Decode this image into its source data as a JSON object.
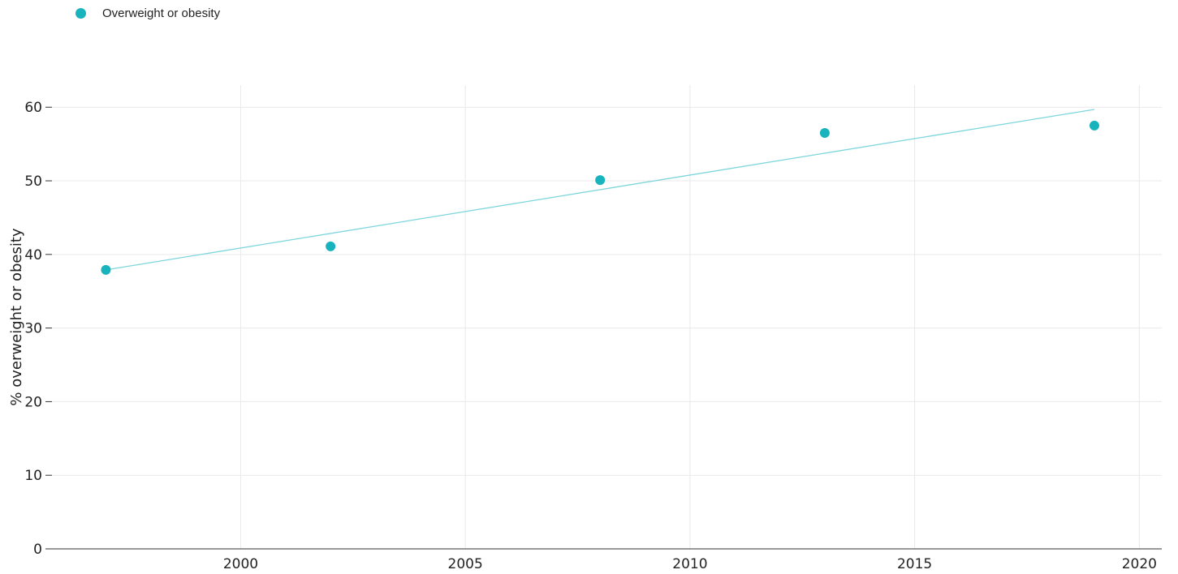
{
  "legend": {
    "label": "Overweight or obesity"
  },
  "colors": {
    "marker": "#19b3bd",
    "trendline": "#7dd6dc",
    "grid": "#e9e9e9",
    "axis": "#333333",
    "text": "#222222"
  },
  "chart_data": {
    "type": "scatter",
    "title": "",
    "xlabel": "",
    "ylabel": "% overweight or obesity",
    "xlim": [
      1995.8,
      2020.5
    ],
    "ylim": [
      0,
      63
    ],
    "xticks": [
      2000,
      2005,
      2010,
      2015,
      2020
    ],
    "yticks": [
      0,
      10,
      20,
      30,
      40,
      50,
      60
    ],
    "grid": true,
    "legend_position": "top-left",
    "series": [
      {
        "name": "Overweight or obesity",
        "x": [
          1997,
          2002,
          2008,
          2013,
          2019
        ],
        "y": [
          37.9,
          41.1,
          50.1,
          56.5,
          57.5
        ]
      }
    ],
    "trendline": {
      "x": [
        1997,
        2019
      ],
      "y": [
        37.9,
        59.7
      ]
    }
  }
}
